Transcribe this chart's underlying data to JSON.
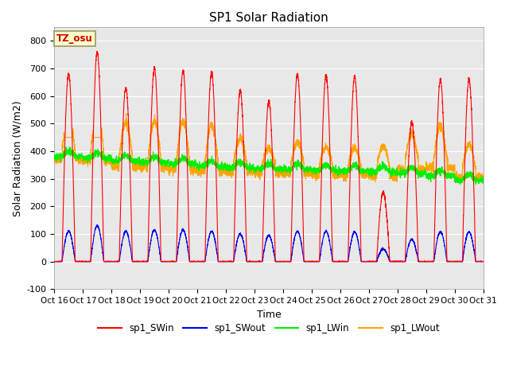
{
  "title": "SP1 Solar Radiation",
  "xlabel": "Time",
  "ylabel": "Solar Radiation (W/m2)",
  "ylim": [
    -100,
    850
  ],
  "yticks": [
    -100,
    0,
    100,
    200,
    300,
    400,
    500,
    600,
    700,
    800
  ],
  "colors": {
    "SWin": "#ff0000",
    "SWout": "#0000ee",
    "LWin": "#00ee00",
    "LWout": "#ffa500"
  },
  "legend_labels": [
    "sp1_SWin",
    "sp1_SWout",
    "sp1_LWin",
    "sp1_LWout"
  ],
  "tz_label": "TZ_osu",
  "tz_bg": "#ffffcc",
  "tz_border": "#cc0000",
  "plot_bg": "#e8e8e8",
  "n_days": 15,
  "start_day": 16,
  "points_per_day": 288,
  "sw_peaks": [
    680,
    760,
    630,
    700,
    690,
    685,
    620,
    580,
    680,
    675,
    670,
    250,
    505,
    660,
    660
  ],
  "sw_out_peaks": [
    110,
    130,
    110,
    115,
    115,
    110,
    100,
    95,
    110,
    110,
    108,
    45,
    80,
    108,
    108
  ],
  "lw_in_base": [
    380,
    375,
    365,
    360,
    355,
    345,
    340,
    335,
    335,
    330,
    328,
    325,
    320,
    310,
    295
  ],
  "lw_out_base": [
    400,
    395,
    375,
    370,
    365,
    360,
    355,
    350,
    350,
    345,
    345,
    340,
    365,
    370,
    335
  ],
  "lw_out_day_extra": [
    80,
    100,
    130,
    140,
    140,
    135,
    90,
    60,
    80,
    70,
    65,
    80,
    100,
    120,
    90
  ]
}
